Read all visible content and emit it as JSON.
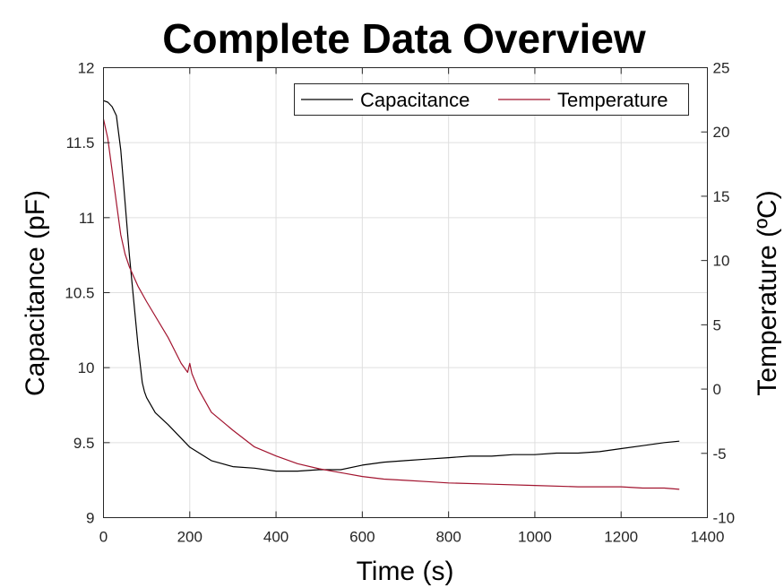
{
  "chart_data": {
    "type": "line",
    "title": "Complete Data Overview",
    "xlabel": "Time (s)",
    "ylabel_left": "Capacitance (pF)",
    "ylabel_right": "Temperature (ºC)",
    "xlim": [
      0,
      1400
    ],
    "ylim_left": [
      9,
      12
    ],
    "ylim_right": [
      -10,
      25
    ],
    "xticks": [
      0,
      200,
      400,
      600,
      800,
      1000,
      1200,
      1400
    ],
    "yticks_left": [
      9,
      9.5,
      10,
      10.5,
      11,
      11.5,
      12
    ],
    "yticks_right": [
      -10,
      -5,
      0,
      5,
      10,
      15,
      20,
      25
    ],
    "grid": true,
    "legend_position": "top-right",
    "colors": {
      "capacitance": "#000000",
      "temperature": "#a2142f"
    },
    "series": [
      {
        "name": "Capacitance",
        "axis": "left",
        "x": [
          0,
          10,
          20,
          30,
          40,
          50,
          60,
          70,
          80,
          90,
          95,
          100,
          120,
          150,
          200,
          250,
          300,
          350,
          400,
          450,
          500,
          550,
          600,
          650,
          700,
          750,
          800,
          850,
          900,
          950,
          1000,
          1050,
          1100,
          1150,
          1200,
          1250,
          1300,
          1335
        ],
        "y": [
          11.78,
          11.77,
          11.74,
          11.68,
          11.45,
          11.1,
          10.75,
          10.45,
          10.15,
          9.9,
          9.84,
          9.8,
          9.7,
          9.62,
          9.47,
          9.38,
          9.34,
          9.33,
          9.31,
          9.31,
          9.32,
          9.32,
          9.35,
          9.37,
          9.38,
          9.39,
          9.4,
          9.41,
          9.41,
          9.42,
          9.42,
          9.43,
          9.43,
          9.44,
          9.46,
          9.48,
          9.5,
          9.51
        ]
      },
      {
        "name": "Temperature",
        "axis": "right",
        "x": [
          0,
          10,
          20,
          30,
          40,
          50,
          60,
          80,
          100,
          150,
          180,
          195,
          200,
          205,
          220,
          250,
          300,
          350,
          400,
          450,
          500,
          550,
          600,
          650,
          700,
          750,
          800,
          900,
          1000,
          1100,
          1200,
          1250,
          1300,
          1335
        ],
        "y": [
          21,
          19.5,
          17,
          14.5,
          12,
          10.5,
          9.5,
          8,
          6.8,
          4,
          2,
          1.3,
          2,
          1.2,
          0,
          -1.8,
          -3.2,
          -4.5,
          -5.2,
          -5.8,
          -6.2,
          -6.5,
          -6.8,
          -7,
          -7.1,
          -7.2,
          -7.3,
          -7.4,
          -7.5,
          -7.6,
          -7.6,
          -7.7,
          -7.7,
          -7.8
        ]
      }
    ]
  }
}
